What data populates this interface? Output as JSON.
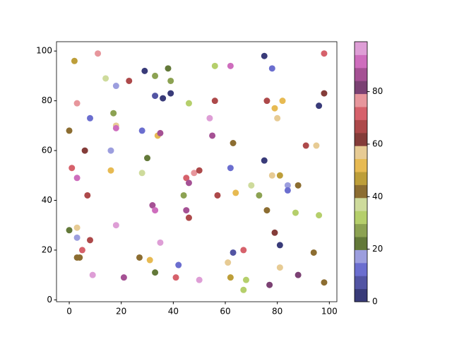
{
  "chart_data": {
    "type": "scatter",
    "x": [
      2,
      11,
      14,
      18,
      23,
      29,
      33,
      38,
      39,
      33,
      36,
      39,
      46,
      56,
      62,
      75,
      78,
      98,
      3,
      8,
      17,
      18,
      18,
      0,
      28,
      34,
      35,
      56,
      54,
      55,
      76,
      79,
      82,
      80,
      96,
      98,
      6,
      16,
      30,
      1,
      3,
      16,
      28,
      45,
      48,
      50,
      46,
      63,
      62,
      75,
      78,
      81,
      91,
      95,
      7,
      44,
      57,
      64,
      70,
      73,
      76,
      84,
      84,
      88,
      87,
      96,
      32,
      33,
      45,
      46,
      3,
      0,
      3,
      18,
      8,
      5,
      3,
      4,
      9,
      21,
      27,
      31,
      33,
      35,
      42,
      41,
      50,
      61,
      63,
      67,
      62,
      68,
      67,
      77,
      79,
      81,
      81,
      88,
      94,
      98
    ],
    "y": [
      96,
      99,
      89,
      86,
      88,
      92,
      90,
      93,
      88,
      82,
      81,
      83,
      79,
      94,
      94,
      98,
      93,
      99,
      79,
      73,
      75,
      70,
      69,
      68,
      68,
      66,
      67,
      80,
      73,
      66,
      80,
      77,
      80,
      73,
      78,
      83,
      60,
      60,
      57,
      53,
      49,
      52,
      51,
      49,
      51,
      52,
      47,
      63,
      53,
      56,
      50,
      50,
      62,
      62,
      42,
      42,
      42,
      43,
      46,
      42,
      36,
      46,
      44,
      46,
      35,
      34,
      38,
      36,
      36,
      33,
      29,
      28,
      25,
      30,
      24,
      20,
      17,
      17,
      10,
      9,
      17,
      16,
      11,
      23,
      14,
      9,
      8,
      15,
      19,
      20,
      9,
      8,
      4,
      6,
      27,
      22,
      13,
      10,
      19,
      7
    ],
    "c": [
      47.5,
      77.5,
      37.5,
      17.5,
      67.5,
      2.5,
      27.5,
      22.5,
      27.5,
      7.5,
      2.5,
      2.5,
      32.5,
      32.5,
      92.5,
      2.5,
      12.5,
      72.5,
      77.5,
      12.5,
      27.5,
      57.5,
      92.5,
      42.5,
      12.5,
      52.5,
      87.5,
      67.5,
      97.5,
      87.5,
      67.5,
      52.5,
      52.5,
      57.5,
      2.5,
      62.5,
      62.5,
      17.5,
      22.5,
      72.5,
      92.5,
      52.5,
      37.5,
      72.5,
      77.5,
      67.5,
      87.5,
      42.5,
      12.5,
      2.5,
      57.5,
      47.5,
      67.5,
      57.5,
      67.5,
      27.5,
      67.5,
      52.5,
      37.5,
      27.5,
      42.5,
      17.5,
      12.5,
      42.5,
      32.5,
      32.5,
      87.5,
      92.5,
      87.5,
      67.5,
      57.5,
      22.5,
      17.5,
      97.5,
      67.5,
      72.5,
      42.5,
      42.5,
      97.5,
      87.5,
      42.5,
      52.5,
      22.5,
      97.5,
      12.5,
      72.5,
      97.5,
      57.5,
      7.5,
      72.5,
      47.5,
      32.5,
      32.5,
      82.5,
      62.5,
      2.5,
      57.5,
      82.5,
      42.5,
      42.5
    ],
    "colormap": [
      "#393b79",
      "#5254a3",
      "#6b6ecf",
      "#9c9ede",
      "#637939",
      "#8ca252",
      "#b5cf6b",
      "#cedb9c",
      "#8c6d31",
      "#bd9e39",
      "#e7ba52",
      "#e7cb94",
      "#843c39",
      "#ad494a",
      "#d6616b",
      "#e7969c",
      "#7b4173",
      "#a55194",
      "#ce6dbd",
      "#de9ed6"
    ],
    "xlim": [
      -4.9,
      102.9
    ],
    "ylim": [
      -0.75,
      103.75
    ],
    "xticks": [
      0,
      20,
      40,
      60,
      80,
      100
    ],
    "yticks": [
      0,
      20,
      40,
      60,
      80,
      100
    ],
    "clim": [
      0,
      99
    ],
    "cticks": [
      0,
      20,
      40,
      60,
      80
    ]
  }
}
